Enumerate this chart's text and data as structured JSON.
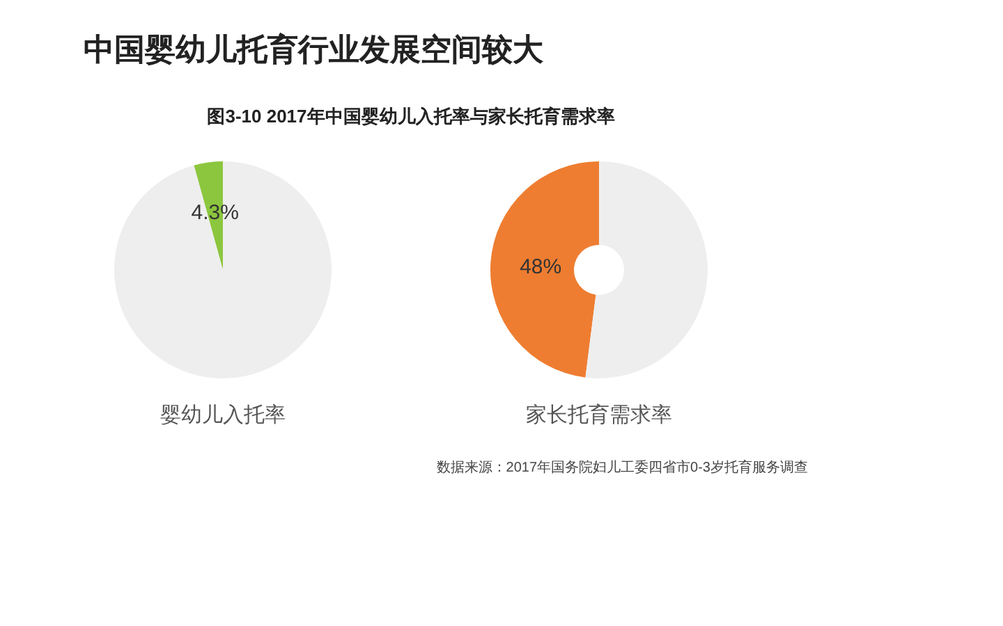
{
  "chart_data": [
    {
      "type": "pie",
      "title": "中国婴幼儿托育行业发展空间较大",
      "subtitle": "图3-10 2017年中国婴幼儿入托率与家长托育需求率",
      "xlabel": "婴幼儿入托率",
      "categories": [
        null,
        null
      ],
      "values": [
        4.3,
        95.7
      ],
      "colors": [
        "#8cc63e",
        "#eeeeee"
      ],
      "value_labels": [
        "4.3%",
        null
      ]
    },
    {
      "type": "donut",
      "xlabel": "家长托育需求率",
      "categories": [
        null,
        null
      ],
      "values": [
        48,
        52
      ],
      "colors": [
        "#ee7d31",
        "#eeeeee"
      ],
      "value_labels": [
        "48%",
        null
      ],
      "annotations": [
        "数据来源：2017年国务院妇儿工委四省市0-3岁托育服务调查"
      ]
    }
  ]
}
